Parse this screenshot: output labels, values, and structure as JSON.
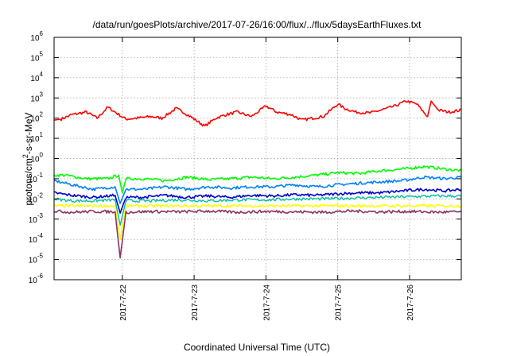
{
  "chart_data": {
    "type": "line",
    "title": "/data/run/goesPlots/archive/2017-07-26/16:00/flux/../flux/5daysEarthFluxes.txt",
    "xlabel": "Coordinated Universal Time (UTC)",
    "ylabel_prefix": "protons/cm",
    "ylabel_sup": "2",
    "ylabel_suffix": "-s-sr-MeV",
    "yscale": "log",
    "ylim_exp": [
      -6,
      6
    ],
    "y_tick_exponents": [
      -6,
      -5,
      -4,
      -3,
      -2,
      -1,
      0,
      1,
      2,
      3,
      4,
      5,
      6
    ],
    "y_tick_base": "10",
    "xlim_day": [
      21.05,
      26.72
    ],
    "x_ticks": [
      {
        "label": "2017-7-22",
        "day": 22
      },
      {
        "label": "2017-7-23",
        "day": 23
      },
      {
        "label": "2017-7-24",
        "day": 24
      },
      {
        "label": "2017-7-25",
        "day": 25
      },
      {
        "label": "2017-7-26",
        "day": 26
      }
    ],
    "grid": true,
    "series": [
      {
        "color": "#ff0000",
        "width": 1.6,
        "x": [
          21.05,
          21.15,
          21.3,
          21.5,
          21.65,
          21.8,
          21.95,
          22.05,
          22.2,
          22.4,
          22.55,
          22.75,
          22.85,
          23.0,
          23.15,
          23.3,
          23.45,
          23.6,
          23.8,
          24.0,
          24.15,
          24.35,
          24.5,
          24.65,
          24.8,
          25.0,
          25.1,
          25.25,
          25.45,
          25.6,
          25.8,
          25.95,
          26.1,
          26.25,
          26.3,
          26.4,
          26.55,
          26.72
        ],
        "y": [
          80,
          90,
          150,
          200,
          100,
          350,
          150,
          90,
          100,
          120,
          100,
          300,
          200,
          90,
          40,
          100,
          150,
          200,
          120,
          400,
          200,
          150,
          80,
          100,
          120,
          500,
          300,
          200,
          180,
          250,
          400,
          700,
          500,
          120,
          700,
          250,
          200,
          250
        ]
      },
      {
        "color": "#00ff00",
        "width": 1.6,
        "x": [
          21.05,
          21.2,
          21.5,
          21.8,
          21.95,
          22.0,
          22.05,
          22.3,
          22.6,
          22.9,
          23.2,
          23.5,
          23.8,
          24.1,
          24.4,
          24.7,
          25.0,
          25.3,
          25.6,
          25.9,
          26.2,
          26.5,
          26.72
        ],
        "y": [
          0.15,
          0.15,
          0.1,
          0.1,
          0.15,
          0.02,
          0.1,
          0.1,
          0.08,
          0.12,
          0.09,
          0.1,
          0.12,
          0.1,
          0.12,
          0.15,
          0.2,
          0.18,
          0.25,
          0.3,
          0.4,
          0.3,
          0.25
        ]
      },
      {
        "color": "#0080ff",
        "width": 1.6,
        "x": [
          21.05,
          21.3,
          21.6,
          21.9,
          21.97,
          22.05,
          22.3,
          22.6,
          22.9,
          23.2,
          23.5,
          23.8,
          24.1,
          24.4,
          24.7,
          25.0,
          25.3,
          25.6,
          25.9,
          26.2,
          26.5,
          26.72
        ],
        "y": [
          0.08,
          0.05,
          0.03,
          0.04,
          0.006,
          0.03,
          0.03,
          0.04,
          0.03,
          0.04,
          0.035,
          0.04,
          0.04,
          0.05,
          0.04,
          0.05,
          0.06,
          0.07,
          0.08,
          0.12,
          0.1,
          0.12
        ]
      },
      {
        "color": "#0000cc",
        "width": 1.6,
        "x": [
          21.05,
          21.3,
          21.6,
          21.9,
          21.97,
          22.05,
          22.3,
          22.6,
          22.9,
          23.2,
          23.5,
          23.8,
          24.1,
          24.4,
          24.7,
          25.0,
          25.3,
          25.6,
          25.9,
          26.2,
          26.5,
          26.72
        ],
        "y": [
          0.02,
          0.015,
          0.012,
          0.015,
          0.002,
          0.012,
          0.012,
          0.015,
          0.012,
          0.014,
          0.012,
          0.015,
          0.014,
          0.016,
          0.015,
          0.018,
          0.02,
          0.02,
          0.025,
          0.03,
          0.025,
          0.03
        ]
      },
      {
        "color": "#00c0a0",
        "width": 1.4,
        "x": [
          21.05,
          21.3,
          21.6,
          21.9,
          21.97,
          22.05,
          22.4,
          22.8,
          23.2,
          23.6,
          24.0,
          24.4,
          24.8,
          25.2,
          25.6,
          26.0,
          26.4,
          26.72
        ],
        "y": [
          0.01,
          0.008,
          0.008,
          0.009,
          0.0005,
          0.008,
          0.008,
          0.009,
          0.008,
          0.009,
          0.009,
          0.01,
          0.01,
          0.011,
          0.012,
          0.013,
          0.014,
          0.014
        ]
      },
      {
        "color": "#ffff00",
        "width": 1.6,
        "x": [
          21.05,
          21.9,
          21.97,
          22.05,
          26.72
        ],
        "y": [
          0.0045,
          0.0045,
          0.0001,
          0.0045,
          0.0045
        ]
      },
      {
        "color": "#883366",
        "width": 1.6,
        "x": [
          21.05,
          21.3,
          21.6,
          21.9,
          21.97,
          22.05,
          22.4,
          22.8,
          23.2,
          23.6,
          24.0,
          24.4,
          24.8,
          25.2,
          25.6,
          26.0,
          26.4,
          26.72
        ],
        "y": [
          0.0025,
          0.0022,
          0.0024,
          0.0023,
          1.2e-05,
          0.0022,
          0.0024,
          0.0023,
          0.0025,
          0.0022,
          0.0024,
          0.0023,
          0.0022,
          0.0025,
          0.0023,
          0.0024,
          0.0022,
          0.0023
        ]
      }
    ]
  }
}
